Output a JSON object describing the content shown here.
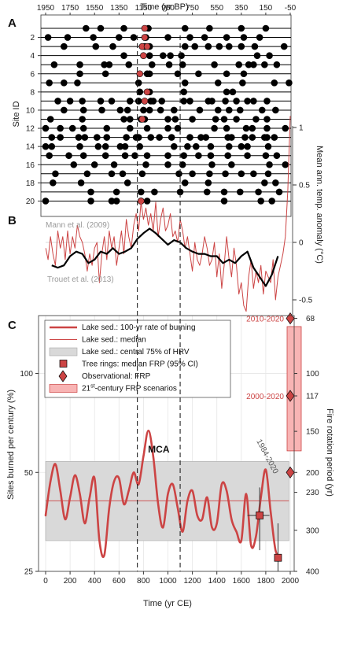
{
  "figure": {
    "panel_labels": [
      "A",
      "B",
      "C"
    ],
    "top_axis_label": "Time (yr BP)",
    "bottom_axis_label": "Time (yr CE)"
  },
  "chart_data": [
    {
      "panel": "A",
      "type": "scatter",
      "xlabel": "Time (yr BP)",
      "ylabel": "Site ID",
      "x_ticks": [
        1950,
        1750,
        1550,
        1350,
        1150,
        950,
        750,
        550,
        350,
        150,
        -50
      ],
      "y_ticks": [
        2,
        4,
        6,
        8,
        10,
        12,
        14,
        16,
        18,
        20
      ],
      "xlim_ce": [
        0,
        2000
      ],
      "n_sites": 20,
      "marker_colors": {
        "fire": "#000000",
        "mca_highlight": "#cc4444"
      },
      "events": [
        {
          "site": 1,
          "years": [
            330,
            450,
            640,
            840,
            1140,
            1340,
            1600,
            1800
          ]
        },
        {
          "site": 2,
          "years": [
            20,
            180,
            390,
            600,
            720,
            820,
            1000,
            1180,
            1300,
            1480,
            1620,
            1750
          ]
        },
        {
          "site": 3,
          "years": [
            150,
            410,
            550,
            810,
            850,
            1140,
            1220,
            1330,
            1420,
            1500,
            1600,
            1710,
            1950
          ]
        },
        {
          "site": 4,
          "years": [
            640,
            850,
            960,
            1020,
            1110,
            1730,
            1830
          ]
        },
        {
          "site": 5,
          "years": [
            70,
            280,
            480,
            520,
            680,
            870,
            1010,
            1120,
            1380,
            1580,
            1660,
            1700,
            1790,
            1890
          ]
        },
        {
          "site": 6,
          "years": [
            280,
            490,
            830,
            850,
            1080,
            1250,
            1480,
            1620
          ]
        },
        {
          "site": 7,
          "years": [
            30,
            150,
            260,
            760,
            1140,
            1410,
            1610,
            1870,
            1990
          ]
        },
        {
          "site": 8,
          "years": [
            770,
            850,
            1130,
            1480,
            1530
          ]
        },
        {
          "site": 9,
          "years": [
            100,
            200,
            300,
            450,
            540,
            690,
            760,
            860,
            880,
            950,
            1130,
            1180,
            1330,
            1360,
            1470,
            1560,
            1650,
            1700,
            1810
          ]
        },
        {
          "site": 10,
          "years": [
            150,
            310,
            460,
            610,
            670,
            800,
            850,
            940,
            1050,
            1260,
            1410,
            1500,
            1590,
            1770,
            1880
          ]
        },
        {
          "site": 11,
          "years": [
            40,
            300,
            640,
            690,
            780,
            810,
            1000,
            1060,
            1200,
            1390,
            1460,
            1560,
            1720,
            1810
          ]
        },
        {
          "site": 12,
          "years": [
            0,
            120,
            220,
            310,
            500,
            690,
            830,
            1000,
            1080,
            1380,
            1480,
            1640,
            1690,
            1810,
            1960
          ]
        },
        {
          "site": 13,
          "years": [
            50,
            120,
            270,
            320,
            420,
            500,
            660,
            740,
            760,
            860,
            930,
            1030,
            1180,
            1270,
            1310,
            1490,
            1520,
            1630,
            1690,
            1790,
            1810,
            1870
          ]
        },
        {
          "site": 14,
          "years": [
            0,
            50,
            280,
            430,
            490,
            610,
            650,
            770,
            1050,
            1160,
            1230,
            1350,
            1500,
            1600,
            1650,
            1820
          ]
        },
        {
          "site": 15,
          "years": [
            30,
            190,
            310,
            490,
            650,
            730,
            830,
            1000,
            1130,
            1250,
            1350,
            1490,
            1650,
            1800,
            1890
          ]
        },
        {
          "site": 16,
          "years": [
            230,
            400,
            560,
            820,
            1000,
            1120,
            1360,
            1520,
            1830,
            1960
          ]
        },
        {
          "site": 17,
          "years": [
            80,
            340,
            540,
            630,
            790,
            1090,
            1200,
            1340,
            1470,
            1600,
            1700,
            1820
          ]
        },
        {
          "site": 18,
          "years": [
            60,
            290,
            670,
            1140,
            1330,
            1790,
            1880
          ]
        },
        {
          "site": 19,
          "years": [
            370,
            580,
            780,
            890,
            1100,
            1320,
            1460,
            1590,
            1740,
            1910
          ]
        },
        {
          "site": 20,
          "years": [
            0,
            370,
            540,
            580,
            780,
            830,
            1460,
            1760,
            1850
          ]
        }
      ],
      "highlight_events": [
        {
          "site": 1,
          "year": 810
        },
        {
          "site": 2,
          "year": 810
        },
        {
          "site": 3,
          "year": 790
        },
        {
          "site": 3,
          "year": 830
        },
        {
          "site": 4,
          "year": 800
        },
        {
          "site": 6,
          "year": 770
        },
        {
          "site": 8,
          "year": 830
        },
        {
          "site": 9,
          "year": 810
        },
        {
          "site": 11,
          "year": 790
        },
        {
          "site": 20,
          "year": 780
        }
      ]
    },
    {
      "panel": "B",
      "type": "line",
      "ylabel": "Mean ann. temp. anomaly (°C)",
      "ylim": [
        -0.75,
        1.2
      ],
      "y_ticks": [
        -0.5,
        0,
        0.5,
        1
      ],
      "annotations": [
        "Mann et al. (2009)",
        "Trouet et al. (2013)"
      ],
      "series": [
        {
          "name": "Trouet et al. (2013)",
          "color": "#cc4444",
          "x": [
            1,
            20,
            40,
            60,
            80,
            100,
            120,
            140,
            160,
            180,
            200,
            220,
            240,
            260,
            280,
            300,
            320,
            340,
            360,
            380,
            400,
            420,
            440,
            460,
            480,
            500,
            520,
            540,
            560,
            580,
            600,
            620,
            640,
            660,
            680,
            700,
            720,
            740,
            760,
            780,
            800,
            820,
            840,
            860,
            880,
            900,
            920,
            940,
            960,
            980,
            1000,
            1020,
            1040,
            1060,
            1080,
            1100,
            1120,
            1140,
            1160,
            1180,
            1200,
            1220,
            1240,
            1260,
            1280,
            1300,
            1320,
            1340,
            1360,
            1380,
            1400,
            1420,
            1440,
            1460,
            1480,
            1500,
            1520,
            1540,
            1560,
            1580,
            1600,
            1620,
            1640,
            1660,
            1680,
            1700,
            1720,
            1740,
            1760,
            1780,
            1800,
            1820,
            1840,
            1860,
            1880,
            1900,
            1920,
            1940,
            1960,
            1980,
            2000
          ],
          "y": [
            -0.05,
            -0.15,
            0.05,
            -0.1,
            -0.2,
            0.1,
            -0.05,
            0.05,
            -0.15,
            0.1,
            -0.1,
            0.05,
            -0.05,
            0.15,
            0.05,
            0.0,
            -0.1,
            -0.25,
            -0.1,
            -0.2,
            -0.05,
            0.0,
            -0.35,
            -0.1,
            0.05,
            -0.15,
            0.1,
            -0.05,
            0.05,
            -0.2,
            -0.05,
            0.1,
            -0.1,
            0.2,
            0.05,
            -0.05,
            0.15,
            0.25,
            0.1,
            0.35,
            0.2,
            0.3,
            0.15,
            0.25,
            0.1,
            0.35,
            0.05,
            0.2,
            0.3,
            0.1,
            0.15,
            0.25,
            0.05,
            0.1,
            0.0,
            0.2,
            0.1,
            -0.05,
            0.05,
            -0.1,
            -0.25,
            0.0,
            -0.15,
            -0.2,
            -0.1,
            0.05,
            -0.05,
            -0.2,
            -0.15,
            0.0,
            -0.3,
            -0.1,
            -0.4,
            -0.2,
            0.05,
            -0.15,
            -0.3,
            -0.05,
            -0.2,
            -0.45,
            -0.35,
            -0.55,
            -0.6,
            -0.3,
            -0.15,
            -0.4,
            -0.25,
            -0.35,
            -0.2,
            -0.45,
            -0.25,
            -0.3,
            -0.35,
            -0.15,
            -0.5,
            -0.3,
            -0.2,
            -0.1,
            0.05,
            0.45,
            1.1
          ]
        },
        {
          "name": "Mann et al. (2009)",
          "color": "#000000",
          "x": [
            50,
            100,
            150,
            200,
            250,
            300,
            350,
            400,
            450,
            500,
            550,
            600,
            650,
            700,
            750,
            800,
            850,
            900,
            950,
            1000,
            1050,
            1100,
            1150,
            1200,
            1250,
            1300,
            1350,
            1400,
            1450,
            1500,
            1550,
            1600,
            1650,
            1700,
            1750,
            1800,
            1850,
            1900
          ],
          "y": [
            -0.2,
            -0.22,
            -0.2,
            -0.12,
            -0.08,
            -0.1,
            -0.18,
            -0.15,
            -0.08,
            -0.1,
            -0.05,
            -0.1,
            -0.08,
            -0.05,
            0.03,
            0.08,
            0.12,
            0.08,
            0.03,
            -0.02,
            0.02,
            0.0,
            -0.05,
            -0.08,
            -0.1,
            -0.1,
            -0.12,
            -0.12,
            -0.18,
            -0.15,
            -0.18,
            -0.12,
            -0.08,
            -0.22,
            -0.3,
            -0.38,
            -0.28,
            -0.12
          ]
        }
      ]
    },
    {
      "panel": "C",
      "type": "line",
      "xlabel": "Time (yr CE)",
      "ylabel": "Sites burned per century (%)",
      "ylabel_right": "Fire rotation period (yr)",
      "x_ticks": [
        0,
        200,
        400,
        600,
        800,
        1000,
        1200,
        1400,
        1600,
        1800,
        2000
      ],
      "y_ticks_left": [
        25,
        50,
        100
      ],
      "y_ticks_right": [
        68,
        100,
        117,
        150,
        200,
        230,
        300,
        400
      ],
      "ylim_rate": [
        25,
        150
      ],
      "annotations": [
        "MCA",
        "2010-2020",
        "2000-2020",
        "1984-2020"
      ],
      "legend": [
        "Lake sed.: 100-yr rate of burning",
        "Lake sed.: median",
        "Lake sed.: central 75% of HRV",
        "Tree rings: median FRP (95% CI)",
        "Observational: FRP",
        "21st-century FRP scenarios"
      ],
      "legend_super": "st",
      "mca_bounds": [
        750,
        1100
      ],
      "median": 41,
      "hrv_band": [
        31,
        54
      ],
      "burning_rate": {
        "x": [
          0,
          40,
          80,
          120,
          160,
          200,
          240,
          280,
          320,
          360,
          400,
          440,
          480,
          520,
          560,
          600,
          640,
          680,
          720,
          760,
          800,
          840,
          880,
          920,
          960,
          1000,
          1040,
          1080,
          1120,
          1160,
          1200,
          1240,
          1280,
          1320,
          1360,
          1400,
          1440,
          1480,
          1520,
          1560,
          1600,
          1640,
          1680,
          1720,
          1760,
          1800,
          1840,
          1880,
          1920
        ],
        "y": [
          37,
          47,
          53,
          44,
          36,
          42,
          49,
          43,
          35,
          42,
          48,
          31,
          28,
          39,
          47,
          48,
          40,
          44,
          50,
          46,
          56,
          67,
          56,
          40,
          34,
          43,
          46,
          39,
          33,
          41,
          44,
          37,
          36,
          42,
          34,
          35,
          46,
          44,
          36,
          33,
          31,
          43,
          30,
          32,
          42,
          51,
          38,
          29,
          28
        ]
      },
      "tree_rings": [
        {
          "year": 1750,
          "rate": 37,
          "ci": [
            29,
            45
          ],
          "year_ci": [
            1650,
            1830
          ]
        },
        {
          "year": 1900,
          "rate": 27.5,
          "ci": [
            25,
            35
          ]
        }
      ],
      "observational": [
        {
          "label": "2010-2020",
          "year": 2000,
          "frp": 68
        },
        {
          "label": "2000-2020",
          "year": 2000,
          "frp": 117
        },
        {
          "label": "1984-2020",
          "year": 2000,
          "frp": 200
        }
      ],
      "scenarios_frp": [
        72,
        172
      ],
      "colors": {
        "rate": "#cc4444",
        "median": "#cc4444",
        "band": "#d9d9d9",
        "tree": "#cc4444",
        "obs": "#cc4444",
        "scenario_fill": "#f8b4b4",
        "scenario_edge": "#cc4444"
      }
    }
  ]
}
